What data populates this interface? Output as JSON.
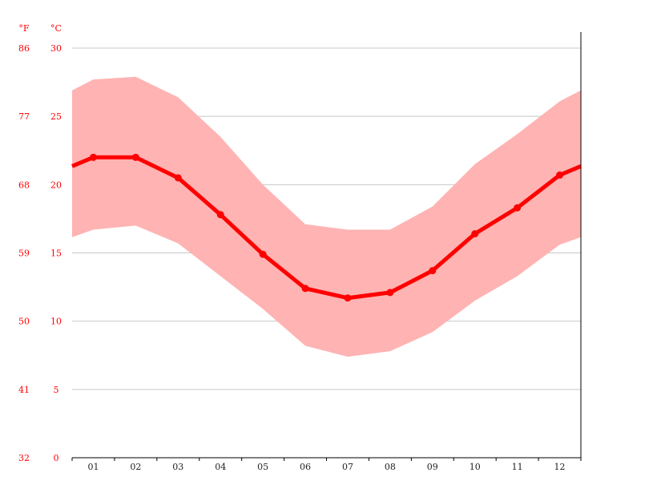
{
  "chart_data": {
    "type": "line",
    "title": "",
    "x": [
      "01",
      "02",
      "03",
      "04",
      "05",
      "06",
      "07",
      "08",
      "09",
      "10",
      "11",
      "12"
    ],
    "ylim": [
      0,
      30
    ],
    "y_ticks_c": [
      "0",
      "5",
      "10",
      "15",
      "20",
      "25",
      "30"
    ],
    "y_ticks_f": [
      "32",
      "41",
      "50",
      "59",
      "68",
      "77",
      "86"
    ],
    "unit_f": "°F",
    "unit_c": "°C",
    "grid": true,
    "series": [
      {
        "role": "mean",
        "values": [
          22.0,
          22.0,
          20.5,
          17.8,
          14.9,
          12.4,
          11.7,
          12.1,
          13.7,
          16.4,
          18.3,
          20.7
        ]
      },
      {
        "role": "max",
        "values": [
          27.7,
          27.9,
          26.4,
          23.5,
          20.0,
          17.1,
          16.7,
          16.7,
          18.4,
          21.5,
          23.7,
          26.1
        ]
      },
      {
        "role": "min",
        "values": [
          16.7,
          17.0,
          15.7,
          13.3,
          10.9,
          8.2,
          7.4,
          7.8,
          9.2,
          11.5,
          13.3,
          15.6
        ]
      }
    ],
    "colors": {
      "line": "#ff0000",
      "band": "#ffb3b3",
      "axis_labels": "#ff0000",
      "grid": "#c8c8c8"
    }
  }
}
